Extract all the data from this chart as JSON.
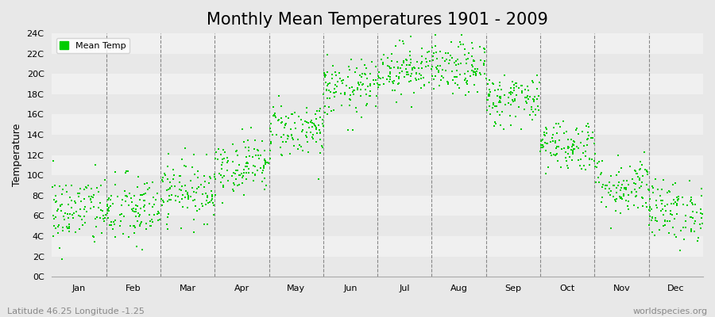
{
  "title": "Monthly Mean Temperatures 1901 - 2009",
  "ylabel": "Temperature",
  "xlabel_labels": [
    "Jan",
    "Feb",
    "Mar",
    "Apr",
    "May",
    "Jun",
    "Jul",
    "Aug",
    "Sep",
    "Oct",
    "Nov",
    "Dec"
  ],
  "ytick_labels": [
    "0C",
    "2C",
    "4C",
    "6C",
    "8C",
    "10C",
    "12C",
    "14C",
    "16C",
    "18C",
    "20C",
    "22C",
    "24C"
  ],
  "ytick_values": [
    0,
    2,
    4,
    6,
    8,
    10,
    12,
    14,
    16,
    18,
    20,
    22,
    24
  ],
  "ylim": [
    0,
    24
  ],
  "dot_color": "#00CC00",
  "legend_label": "Mean Temp",
  "bg_color": "#e8e8e8",
  "plot_bg_bands": [
    "#e8e8e8",
    "#f5f5f5"
  ],
  "footer_left": "Latitude 46.25 Longitude -1.25",
  "footer_right": "worldspecies.org",
  "title_fontsize": 15,
  "axis_label_fontsize": 9,
  "tick_fontsize": 8,
  "footer_fontsize": 8,
  "monthly_means": [
    6.5,
    6.5,
    8.5,
    11.0,
    14.5,
    18.5,
    20.5,
    20.5,
    17.5,
    13.0,
    9.0,
    6.5
  ],
  "monthly_stds": [
    1.8,
    1.8,
    1.5,
    1.4,
    1.4,
    1.4,
    1.3,
    1.3,
    1.3,
    1.3,
    1.5,
    1.5
  ],
  "n_years": 109,
  "seed": 42
}
